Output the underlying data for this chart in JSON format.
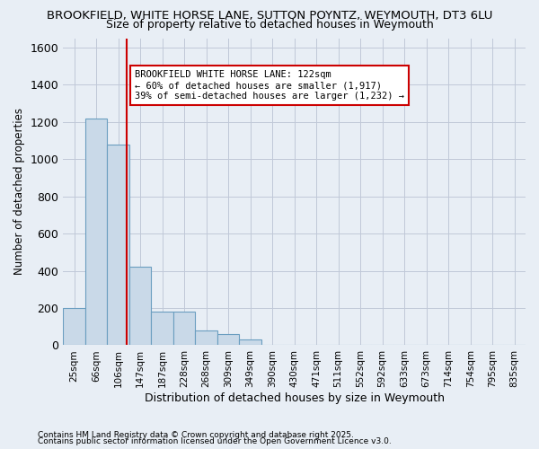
{
  "title_line1": "BROOKFIELD, WHITE HORSE LANE, SUTTON POYNTZ, WEYMOUTH, DT3 6LU",
  "title_line2": "Size of property relative to detached houses in Weymouth",
  "xlabel": "Distribution of detached houses by size in Weymouth",
  "ylabel": "Number of detached properties",
  "footnote_line1": "Contains HM Land Registry data © Crown copyright and database right 2025.",
  "footnote_line2": "Contains public sector information licensed under the Open Government Licence v3.0.",
  "bin_labels": [
    "25sqm",
    "66sqm",
    "106sqm",
    "147sqm",
    "187sqm",
    "228sqm",
    "268sqm",
    "309sqm",
    "349sqm",
    "390sqm",
    "430sqm",
    "471sqm",
    "511sqm",
    "552sqm",
    "592sqm",
    "633sqm",
    "673sqm",
    "714sqm",
    "754sqm",
    "795sqm",
    "835sqm"
  ],
  "bar_values": [
    200,
    1220,
    1080,
    420,
    182,
    182,
    80,
    60,
    30,
    0,
    0,
    0,
    0,
    0,
    0,
    0,
    0,
    0,
    0,
    0,
    0
  ],
  "bar_color": "#c9d9e8",
  "bar_edge_color": "#6a9ec0",
  "grid_color": "#c0c8d8",
  "background_color": "#e8eef5",
  "vline_color": "#cc0000",
  "annotation_text": "BROOKFIELD WHITE HORSE LANE: 122sqm\n← 60% of detached houses are smaller (1,917)\n39% of semi-detached houses are larger (1,232) →",
  "annotation_box_color": "#ffffff",
  "annotation_box_edge": "#cc0000",
  "ylim": [
    0,
    1650
  ],
  "yticks": [
    0,
    200,
    400,
    600,
    800,
    1000,
    1200,
    1400,
    1600
  ]
}
